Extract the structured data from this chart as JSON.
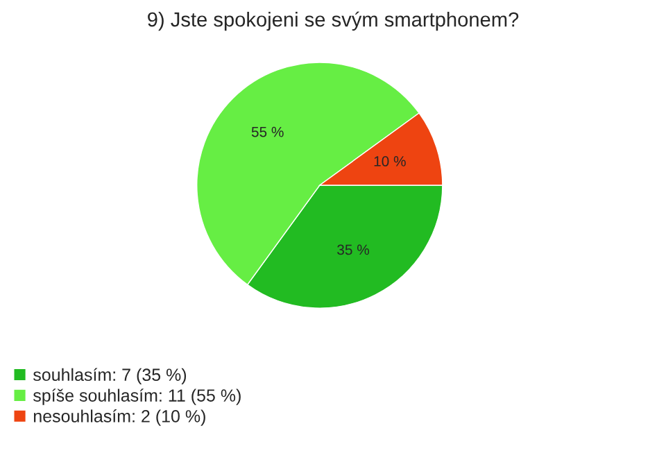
{
  "chart_data": {
    "type": "pie",
    "title": "9) Jste spokojeni se svým smartphonem?",
    "categories": [
      "souhlasím: 7 (35 %)",
      "spíše souhlasím: 11 (55 %)",
      "nesouhlasím: 2 (10 %)"
    ],
    "values": [
      35,
      55,
      10
    ],
    "value_labels": [
      "35 %",
      "55 %",
      "10 %"
    ],
    "colors": [
      "#22bb22",
      "#66ee44",
      "#ee4411"
    ],
    "legend": "bottom left"
  }
}
